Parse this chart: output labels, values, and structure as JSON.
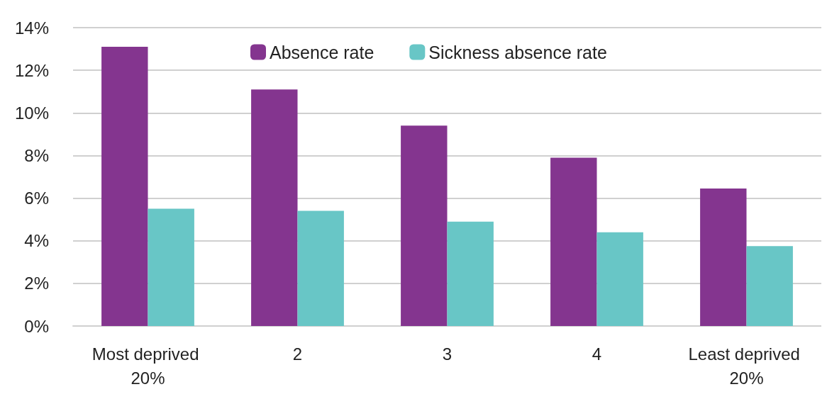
{
  "chart_data": {
    "type": "bar",
    "categories": [
      "Most deprived 20%",
      "2",
      "3",
      "4",
      "Least deprived 20%"
    ],
    "series": [
      {
        "name": "Absence rate",
        "color": "#84358f",
        "values": [
          13.1,
          11.1,
          9.4,
          7.9,
          6.45
        ]
      },
      {
        "name": "Sickness absence rate",
        "color": "#68c6c6",
        "values": [
          5.5,
          5.4,
          4.9,
          4.4,
          3.75
        ]
      }
    ],
    "ylim": [
      0,
      14
    ],
    "yticks": [
      {
        "value": 0,
        "label": "0%"
      },
      {
        "value": 2,
        "label": "2%"
      },
      {
        "value": 4,
        "label": "4%"
      },
      {
        "value": 6,
        "label": "6%"
      },
      {
        "value": 8,
        "label": "8%"
      },
      {
        "value": 10,
        "label": "10%"
      },
      {
        "value": 12,
        "label": "12%"
      },
      {
        "value": 14,
        "label": "14%"
      }
    ],
    "grid": true,
    "legend": "top"
  }
}
